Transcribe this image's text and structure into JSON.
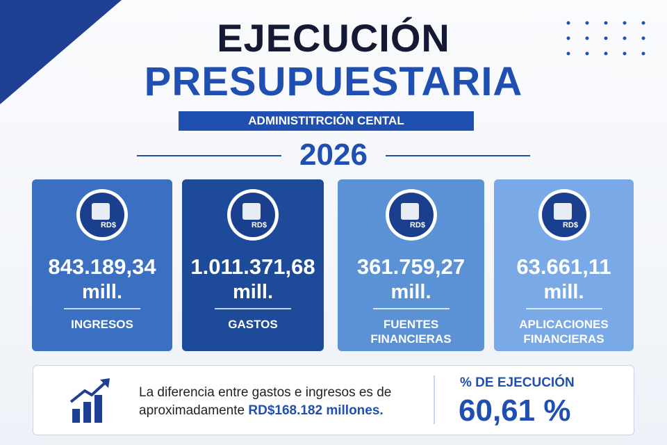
{
  "header": {
    "title_line1": "EJECUCIÓN",
    "title_line2": "PRESUPUESTARIA",
    "subtitle": "ADMINISTITRCIÓN CENTAL",
    "year": "2026"
  },
  "cards": [
    {
      "icon_label": "RD$",
      "amount": "843.189,34",
      "unit": "mill.",
      "label": [
        "INGRESOS"
      ]
    },
    {
      "icon_label": "RD$",
      "amount": "1.011.371,68",
      "unit": "mill.",
      "label": [
        "GASTOS"
      ]
    },
    {
      "icon_label": "RD$",
      "amount": "361.759,27",
      "unit": "mill.",
      "label": [
        "FUENTES",
        "FINANCIERAS"
      ]
    },
    {
      "icon_label": "RD$",
      "amount": "63.661,11",
      "unit": "mill.",
      "label": [
        "APLICACIONES",
        "FINANCIERAS"
      ]
    }
  ],
  "footer": {
    "text_line1": "La diferencia entre gastos e ingresos es de",
    "text_line2": "aproximadamente",
    "highlight": "RD$168.182 millones.",
    "metric_label": "% DE EJECUCIÓN",
    "metric_value": "60,61 %"
  }
}
